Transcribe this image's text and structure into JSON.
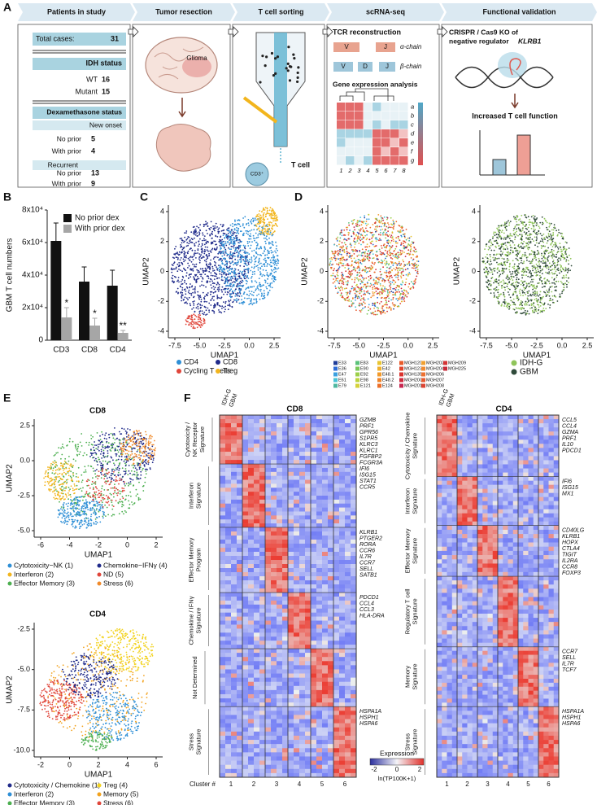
{
  "panel_a": {
    "label": "A",
    "steps": [
      "Patients in study",
      "Tumor resection",
      "T cell sorting",
      "scRNA-seq",
      "Functional validation"
    ],
    "patients": {
      "total": [
        "Total cases:",
        31
      ],
      "idh_title": "IDH status",
      "idh": [
        [
          "WT",
          16
        ],
        [
          "Mutant",
          15
        ]
      ],
      "dex_title": "Dexamethasone status",
      "new_onset": "New onset",
      "new_rows": [
        [
          "No prior",
          5
        ],
        [
          "With prior",
          4
        ]
      ],
      "recurrent": "Recurrent",
      "rec_rows": [
        [
          "No prior",
          13
        ],
        [
          "With prior",
          9
        ]
      ]
    },
    "tumor": "Glioma",
    "sorting": [
      "T cell",
      "CD3⁺"
    ],
    "scrna": {
      "tcr": "TCR reconstruction",
      "alpha": "α-chain",
      "beta": "β-chain",
      "alpha_segments": [
        "V",
        "J"
      ],
      "beta_segments": [
        "V",
        "D",
        "J"
      ],
      "gex": "Gene expression analysis",
      "rows": [
        "a",
        "b",
        "c",
        "d",
        "e",
        "f",
        "g"
      ],
      "cols": [
        "1",
        "2",
        "3",
        "4",
        "5",
        "6",
        "7",
        "8"
      ]
    },
    "functional": {
      "title": "CRISPR / Cas9 KO of",
      "title2": "negative regulator",
      "gene": "KLRB1",
      "result": "Increased T cell function"
    }
  },
  "chart_data": {
    "type": "bar",
    "panel": "B",
    "y_label": "GBM T cell numbers",
    "categories": [
      "CD3",
      "CD8",
      "CD4"
    ],
    "series": [
      {
        "name": "No prior dex",
        "color": "#111111",
        "values": [
          61000,
          36000,
          33500
        ],
        "errors": [
          11000,
          9000,
          9500
        ]
      },
      {
        "name": "With prior dex",
        "color": "#a6a6a6",
        "values": [
          14000,
          9000,
          4500
        ],
        "errors": [
          6000,
          4500,
          1500
        ]
      }
    ],
    "annotations": [
      "*",
      "*",
      "**"
    ],
    "ylim": [
      0,
      80000
    ],
    "yticks": [
      0,
      {
        "value": 20000,
        "label": "2x10⁴"
      },
      {
        "value": 40000,
        "label": "4x10⁴"
      },
      {
        "value": 60000,
        "label": "6x10⁴"
      },
      {
        "value": 80000,
        "label": "8x10⁴"
      }
    ],
    "legend": "upper right"
  },
  "panel_c": {
    "label": "C",
    "x_label": "UMAP1",
    "y_label": "UMAP2",
    "xticks": [
      "-7.5",
      "-5.0",
      "-2.5",
      "0.0",
      "2.5"
    ],
    "yticks": [
      "4",
      "2",
      "0",
      "-2",
      "-4"
    ],
    "legend": [
      {
        "name": "CD4",
        "color": "#2e8fd6"
      },
      {
        "name": "CD8",
        "color": "#1f2a8a"
      },
      {
        "name": "Cycling T cells",
        "color": "#e0453a"
      },
      {
        "name": "Treg",
        "color": "#f2b51d"
      }
    ]
  },
  "panel_d": {
    "label": "D",
    "x_label": "UMAP1",
    "y_label": "UMAP2",
    "xticks": [
      "-7.5",
      "-5.0",
      "-2.5",
      "0.0",
      "2.5"
    ],
    "yticks": [
      "4",
      "2",
      "0",
      "-2",
      "-4"
    ],
    "samples": [
      {
        "name": "E33",
        "color": "#1f3c99"
      },
      {
        "name": "E36",
        "color": "#2d6bd6"
      },
      {
        "name": "E47",
        "color": "#3aa0e0"
      },
      {
        "name": "E61",
        "color": "#49c4d6"
      },
      {
        "name": "E79",
        "color": "#4fb8a0"
      },
      {
        "name": "E83",
        "color": "#5bc27a"
      },
      {
        "name": "E90",
        "color": "#79c95a"
      },
      {
        "name": "E92",
        "color": "#9ccf4a"
      },
      {
        "name": "E98",
        "color": "#bcd43e"
      },
      {
        "name": "E121",
        "color": "#d6d23a"
      },
      {
        "name": "E122",
        "color": "#e8c532"
      },
      {
        "name": "E42",
        "color": "#f0b02c"
      },
      {
        "name": "E48.1",
        "color": "#f29a2a"
      },
      {
        "name": "E48.2",
        "color": "#f08428"
      },
      {
        "name": "E124",
        "color": "#ec6f28"
      },
      {
        "name": "MGH120",
        "color": "#e85a2a"
      },
      {
        "name": "MGH123",
        "color": "#e0462c"
      },
      {
        "name": "MGH135",
        "color": "#d9332e"
      },
      {
        "name": "MGH200",
        "color": "#cf2a3c"
      },
      {
        "name": "MGH201",
        "color": "#c7264f"
      },
      {
        "name": "MGH202",
        "color": "#f0a030"
      },
      {
        "name": "MGH204",
        "color": "#f08a30"
      },
      {
        "name": "MGH206",
        "color": "#ec7030"
      },
      {
        "name": "MGH207",
        "color": "#e65a30"
      },
      {
        "name": "MGH208",
        "color": "#dc4432"
      },
      {
        "name": "MGH209",
        "color": "#d43434"
      },
      {
        "name": "MGH225",
        "color": "#c82a38"
      }
    ],
    "groups": [
      {
        "name": "IDH-G",
        "color": "#8fc45a"
      },
      {
        "name": "GBM",
        "color": "#2f4a3a"
      }
    ]
  },
  "panel_e": {
    "label": "E",
    "cd8": {
      "title": "CD8",
      "x_label": "UMAP1",
      "y_label": "UMAP2",
      "xticks": [
        "-6",
        "-4",
        "-2",
        "0",
        "2"
      ],
      "yticks": [
        "2.5",
        "0.0",
        "-2.5",
        "-5.0"
      ],
      "legend": [
        {
          "name": "Cytotoxicity−NK (1)",
          "color": "#2e8fd6"
        },
        {
          "name": "Chemokine−IFNγ (4)",
          "color": "#1f2a8a"
        },
        {
          "name": "Interferon (2)",
          "color": "#f2b51d"
        },
        {
          "name": "ND (5)",
          "color": "#e0453a"
        },
        {
          "name": "Effector Memory (3)",
          "color": "#4caf50"
        },
        {
          "name": "Stress (6)",
          "color": "#f08a2a"
        }
      ]
    },
    "cd4": {
      "title": "CD4",
      "x_label": "UMAP1",
      "y_label": "UMAP2",
      "xticks": [
        "-2",
        "0",
        "2",
        "4",
        "6"
      ],
      "yticks": [
        "-2.5",
        "-5.0",
        "-7.5",
        "-10.0"
      ],
      "legend": [
        {
          "name": "Cytotoxicity / Chemokine (1)",
          "color": "#1f2a8a"
        },
        {
          "name": "Treg (4)",
          "color": "#f2d21d"
        },
        {
          "name": "Interferon (2)",
          "color": "#2e8fd6"
        },
        {
          "name": "Memory (5)",
          "color": "#f2a21d"
        },
        {
          "name": "Effector Memory (3)",
          "color": "#4caf50"
        },
        {
          "name": "Stress (6)",
          "color": "#e0453a"
        }
      ]
    }
  },
  "panel_f": {
    "label": "F",
    "cd8": {
      "title": "CD8",
      "cols": [
        "IDH-G",
        "GBM"
      ],
      "groups": [
        {
          "name": [
            "Cytotoxicity /",
            "NK Receptor",
            "Signature"
          ],
          "genes": [
            "GZMB",
            "PRF1",
            "GPR56",
            "S1PR5",
            "KLRC3",
            "KLRC1",
            "FGFBP2",
            "FCGR3A"
          ]
        },
        {
          "name": [
            "Interferon",
            "Signature"
          ],
          "genes": [
            "IFI6",
            "ISG15",
            "STAT1",
            "CCR5"
          ]
        },
        {
          "name": [
            "Effector Memory",
            "Program"
          ],
          "genes": [
            "KLRB1",
            "PTGER2",
            "RORA",
            "CCR6",
            "IL7R",
            "CCR7",
            "SELL",
            "SATB1"
          ]
        },
        {
          "name": [
            "Chemokine / IFNγ",
            "Signature"
          ],
          "genes": [
            "PDCD1",
            "CCL4",
            "CCL3",
            "HLA-DRA"
          ]
        },
        {
          "name": [
            "Not Determined"
          ],
          "genes": []
        },
        {
          "name": [
            "Stress",
            "Signature"
          ],
          "genes": [
            "HSPA1A",
            "HSPH1",
            "HSPA6"
          ]
        }
      ],
      "cluster_label": "Cluster #",
      "clusters": [
        "1",
        "2",
        "3",
        "4",
        "5",
        "6"
      ]
    },
    "cd4": {
      "title": "CD4",
      "cols": [
        "IDH-G",
        "GBM"
      ],
      "groups": [
        {
          "name": [
            "Cytotoxicity / Chemokine",
            "Signature"
          ],
          "genes": [
            "CCL5",
            "CCL4",
            "GZMA",
            "PRF1",
            "IL10",
            "PDCD1"
          ]
        },
        {
          "name": [
            "Interferon",
            "Signature"
          ],
          "genes": [
            "IFI6",
            "ISG15",
            "MX1"
          ]
        },
        {
          "name": [
            "Effector Memory",
            "Signature"
          ],
          "genes": [
            "CD40LG",
            "KLRB1",
            "HOPX",
            "CTLA4",
            "TIGIT",
            "IL2RA",
            "CCR8",
            "FOXP3"
          ]
        },
        {
          "name": [
            "Regulatory T cell",
            "Signature"
          ],
          "genes": []
        },
        {
          "name": [
            "Memory",
            "Signature"
          ],
          "genes": [
            "CCR7",
            "SELL",
            "IL7R",
            "TCF7"
          ]
        },
        {
          "name": [
            "Stress",
            "Signature"
          ],
          "genes": [
            "HSPA1A",
            "HSPH1",
            "HSPA6"
          ]
        }
      ],
      "clusters": [
        "1",
        "2",
        "3",
        "4",
        "5",
        "6"
      ]
    },
    "colorbar": {
      "title": "Expression",
      "ticks": [
        "-2",
        "0",
        "2"
      ],
      "unit": "ln(TP100K+1)"
    }
  }
}
